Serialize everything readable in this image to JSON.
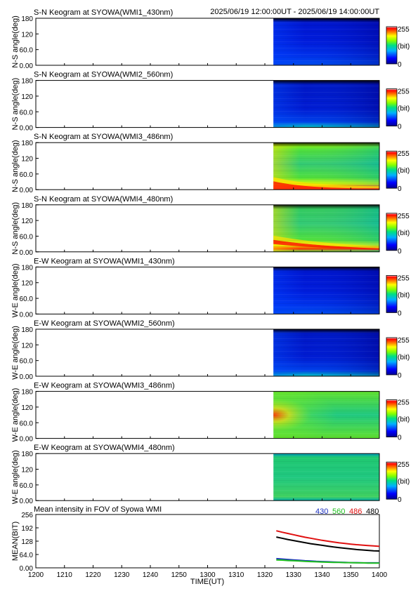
{
  "header": {
    "time_range": "2025/06/19 12:00:00UT - 2025/06/19 14:00:00UT"
  },
  "colors": {
    "series_430": "#1a2fbf",
    "series_560": "#20c020",
    "series_486": "#e01010",
    "series_480": "#000000"
  },
  "colorbar": {
    "max_label": "255",
    "unit_label": "(bit)",
    "min_label": "0"
  },
  "chart_data": [
    {
      "type": "heatmap",
      "title": "S-N Keogram at SYOWA(WMI1_430nm)",
      "ylabel": "N-S angle(deg)",
      "yticks": [
        "180",
        "120",
        "60.0",
        "0.00"
      ],
      "ylim": [
        0,
        180
      ],
      "data_start_time": "13:23",
      "profile": "blue-430",
      "intensity_range": [
        0,
        255
      ]
    },
    {
      "type": "heatmap",
      "title": "S-N Keogram at SYOWA(WMI2_560nm)",
      "ylabel": "N-S angle(deg)",
      "yticks": [
        "180",
        "120",
        "60.0",
        "0.00"
      ],
      "ylim": [
        0,
        180
      ],
      "data_start_time": "13:23",
      "profile": "blue-560",
      "intensity_range": [
        0,
        255
      ]
    },
    {
      "type": "heatmap",
      "title": "S-N Keogram at SYOWA(WMI3_486nm)",
      "ylabel": "N-S angle(deg)",
      "yticks": [
        "180",
        "120",
        "60.0",
        "0.00"
      ],
      "ylim": [
        0,
        180
      ],
      "data_start_time": "13:23",
      "profile": "green-486-sn",
      "intensity_range": [
        0,
        255
      ]
    },
    {
      "type": "heatmap",
      "title": "S-N Keogram at SYOWA(WMI4_480nm)",
      "ylabel": "N-S angle(deg)",
      "yticks": [
        "180",
        "120",
        "60.0",
        "0.00"
      ],
      "ylim": [
        0,
        180
      ],
      "data_start_time": "13:23",
      "profile": "green-480-sn",
      "intensity_range": [
        0,
        255
      ]
    },
    {
      "type": "heatmap",
      "title": "E-W Keogram at SYOWA(WMI1_430nm)",
      "ylabel": "W-E angle(deg)",
      "yticks": [
        "180",
        "120",
        "60.0",
        "0.00"
      ],
      "ylim": [
        0,
        180
      ],
      "data_start_time": "13:23",
      "profile": "blue-430",
      "intensity_range": [
        0,
        255
      ]
    },
    {
      "type": "heatmap",
      "title": "E-W Keogram at SYOWA(WMI2_560nm)",
      "ylabel": "W-E angle(deg)",
      "yticks": [
        "180",
        "120",
        "60.0",
        "0.00"
      ],
      "ylim": [
        0,
        180
      ],
      "data_start_time": "13:23",
      "profile": "blue-560",
      "intensity_range": [
        0,
        255
      ]
    },
    {
      "type": "heatmap",
      "title": "E-W Keogram at SYOWA(WMI3_486nm)",
      "ylabel": "W-E angle(deg)",
      "yticks": [
        "180",
        "120",
        "60.0",
        "0.00"
      ],
      "ylim": [
        0,
        180
      ],
      "data_start_time": "13:23",
      "profile": "green-486-ew",
      "intensity_range": [
        0,
        255
      ]
    },
    {
      "type": "heatmap",
      "title": "E-W Keogram at SYOWA(WMI4_480nm)",
      "ylabel": "W-E angle(deg)",
      "yticks": [
        "180",
        "120",
        "60.0",
        "0.00"
      ],
      "ylim": [
        0,
        180
      ],
      "data_start_time": "13:23",
      "profile": "green-480-ew",
      "intensity_range": [
        0,
        255
      ]
    },
    {
      "type": "line",
      "title": "Mean intensity in FOV of Syowa WMI",
      "ylabel": "MEAN(BIT)",
      "xlabel": "TIME(UT)",
      "ylim": [
        0,
        256
      ],
      "yticks": [
        "256",
        "192",
        "128",
        "64.0",
        "0.00"
      ],
      "xlim": [
        1200,
        1400
      ],
      "xticks": [
        "1200",
        "1210",
        "1220",
        "1230",
        "1240",
        "1250",
        "1300",
        "1310",
        "1320",
        "1330",
        "1340",
        "1350",
        "1400"
      ],
      "legend": [
        "430",
        "560",
        "486",
        "480"
      ],
      "x": [
        "13:24",
        "13:26",
        "13:28",
        "13:30",
        "13:32",
        "13:34",
        "13:36",
        "13:38",
        "13:40",
        "13:42",
        "13:44",
        "13:46",
        "13:48",
        "13:50",
        "13:52",
        "13:54",
        "13:56",
        "13:58",
        "14:00"
      ],
      "series": [
        {
          "name": "486",
          "color": "#e01010",
          "values": [
            178,
            171,
            165,
            159,
            153,
            147,
            142,
            137,
            132,
            128,
            124,
            120,
            117,
            114,
            111,
            109,
            107,
            105,
            103
          ]
        },
        {
          "name": "480",
          "color": "#000000",
          "values": [
            148,
            142,
            136,
            131,
            126,
            121,
            116,
            112,
            108,
            104,
            100,
            97,
            94,
            91,
            88,
            86,
            84,
            82,
            81
          ]
        },
        {
          "name": "430",
          "color": "#1a2fbf",
          "values": [
            44,
            42,
            40,
            38,
            36,
            34,
            33,
            31,
            30,
            29,
            28,
            27,
            26,
            25,
            25,
            24,
            24,
            24,
            24
          ]
        },
        {
          "name": "560",
          "color": "#20c020",
          "values": [
            38,
            37,
            35,
            34,
            33,
            31,
            30,
            29,
            28,
            27,
            26,
            26,
            25,
            25,
            24,
            24,
            23,
            23,
            23
          ]
        }
      ]
    }
  ]
}
